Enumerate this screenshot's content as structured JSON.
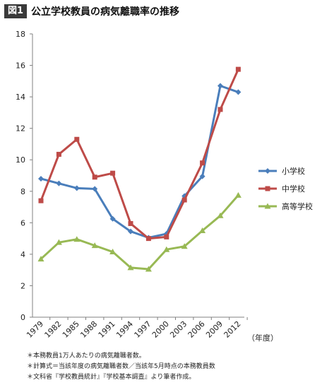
{
  "header": {
    "badge": "図1",
    "title": "公立学校教員の病気離職率の推移"
  },
  "chart_data": {
    "type": "line",
    "x": [
      1979,
      1982,
      1985,
      1988,
      1991,
      1994,
      1997,
      2000,
      2003,
      2006,
      2009,
      2012
    ],
    "x_tick_labels": [
      "1979",
      "1982",
      "1985",
      "1988",
      "1991",
      "1994",
      "1997",
      "2000",
      "2003",
      "2006",
      "2009",
      "2012"
    ],
    "x_unit_label": "（年度）",
    "ylim": [
      0,
      18
    ],
    "yticks": [
      0,
      2,
      4,
      6,
      8,
      10,
      12,
      14,
      16,
      18
    ],
    "grid": false,
    "legend_position": "right",
    "series": [
      {
        "name": "小学校",
        "color": "#4a7ebb",
        "marker": "diamond",
        "values": [
          8.8,
          8.5,
          8.2,
          8.15,
          6.25,
          5.45,
          5.05,
          5.3,
          7.7,
          8.95,
          14.7,
          14.3
        ]
      },
      {
        "name": "中学校",
        "color": "#be4b48",
        "marker": "square",
        "values": [
          7.4,
          10.35,
          11.3,
          8.9,
          9.15,
          5.95,
          5.0,
          5.1,
          7.45,
          9.8,
          13.2,
          15.75
        ]
      },
      {
        "name": "高等学校",
        "color": "#98b954",
        "marker": "triangle",
        "values": [
          3.7,
          4.75,
          4.95,
          4.55,
          4.15,
          3.15,
          3.05,
          4.3,
          4.5,
          5.5,
          6.45,
          7.75
        ]
      }
    ]
  },
  "notes": [
    "＊本務教員1万人あたりの病気離職者数。",
    "＊計算式＝当該年度の病気離職者数／当該年5月時点の本務教員数",
    "＊文科省『学校教員統計』『学校基本調査』より筆者作成。"
  ]
}
